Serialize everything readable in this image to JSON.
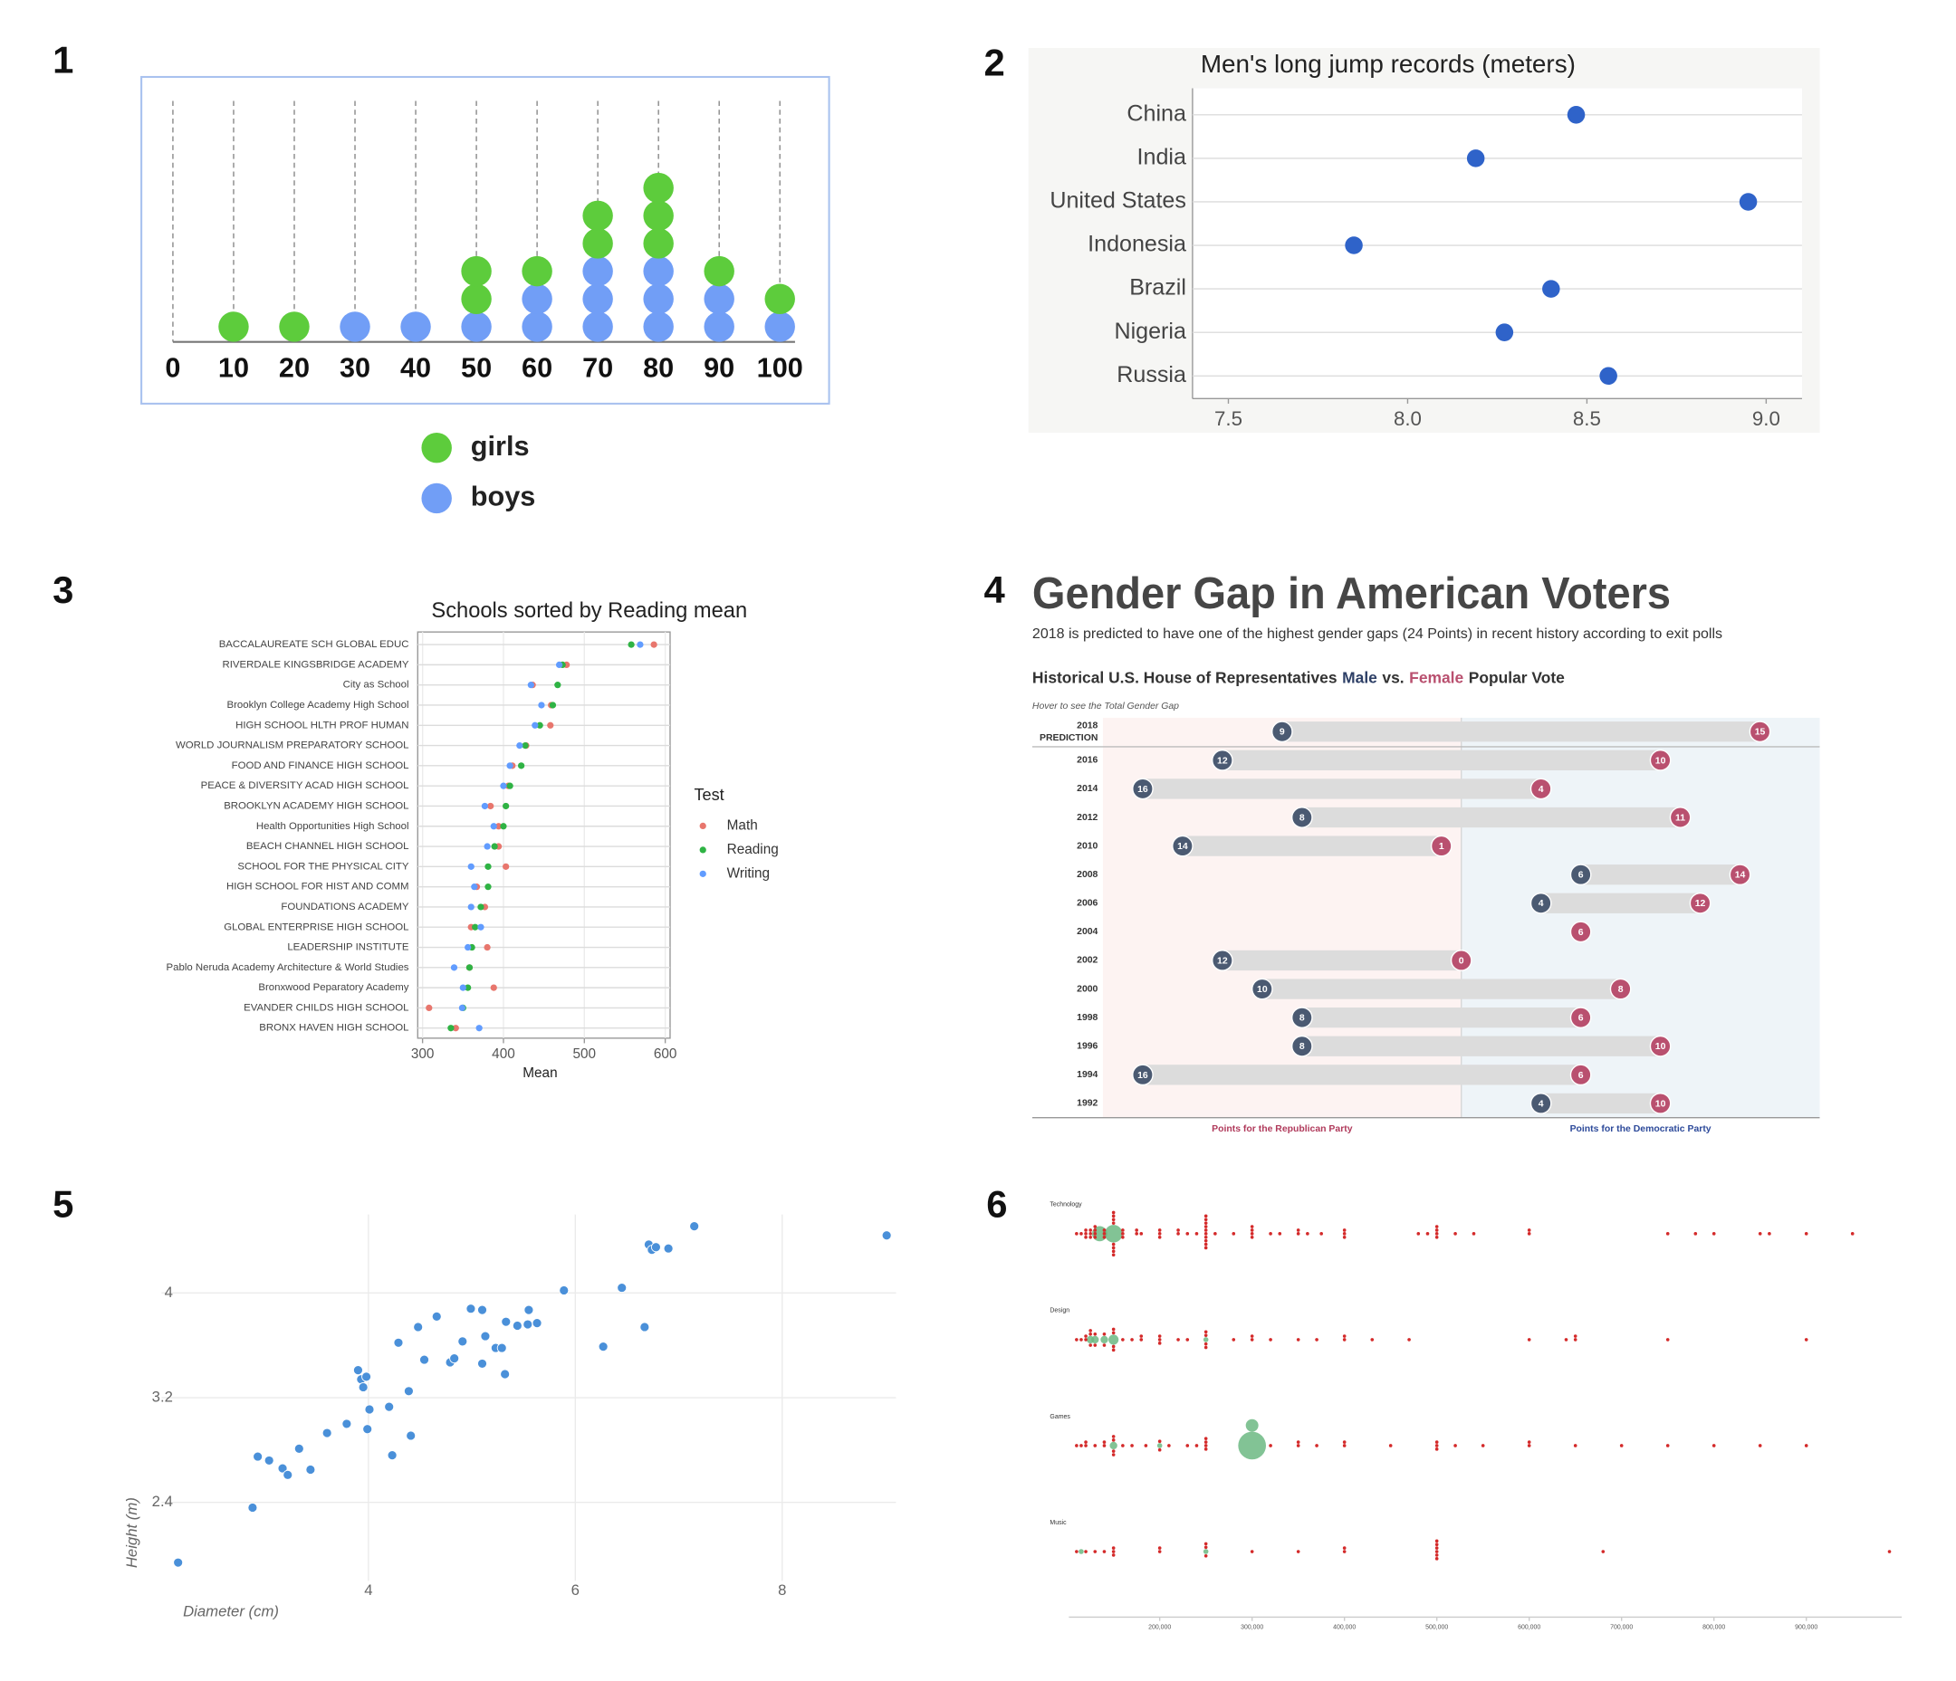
{
  "chart_data": [
    {
      "type": "dotplot",
      "label": "1",
      "x": [
        0,
        10,
        20,
        30,
        40,
        50,
        60,
        70,
        80,
        90,
        100
      ],
      "series": [
        {
          "name": "girls",
          "color": "#5dcc3c",
          "values": [
            0,
            1,
            1,
            0,
            0,
            2,
            1,
            2,
            3,
            1,
            1
          ]
        },
        {
          "name": "boys",
          "color": "#719ef6",
          "values": [
            0,
            0,
            0,
            1,
            1,
            1,
            2,
            3,
            3,
            2,
            1
          ]
        }
      ],
      "xlim": [
        0,
        100
      ],
      "xticks": [
        0,
        10,
        20,
        30,
        40,
        50,
        60,
        70,
        80,
        90,
        100
      ],
      "grid": true
    },
    {
      "type": "dot",
      "label": "2",
      "title": "Men's long jump records (meters)",
      "categories": [
        "China",
        "India",
        "United States",
        "Indonesia",
        "Brazil",
        "Nigeria",
        "Russia"
      ],
      "values": [
        8.47,
        8.19,
        8.95,
        7.85,
        8.4,
        8.27,
        8.56
      ],
      "color": "#2f63c9",
      "xlim": [
        7.4,
        9.1
      ],
      "xticks": [
        7.5,
        {
          "value": 8,
          "label": "8.0"
        },
        8.5,
        {
          "value": 9,
          "label": "9.0"
        }
      ],
      "grid": true
    },
    {
      "type": "dot",
      "label": "3",
      "title": "Schools sorted by Reading mean",
      "xlabel": "Mean",
      "legend_title": "Test",
      "categories": [
        "BACCALAUREATE SCH GLOBAL EDUC",
        "RIVERDALE KINGSBRIDGE ACADEMY",
        "City as School",
        "Brooklyn College Academy High School",
        "HIGH SCHOOL HLTH PROF HUMAN",
        "WORLD JOURNALISM PREPARATORY SCHOOL",
        "FOOD AND FINANCE HIGH SCHOOL",
        "PEACE & DIVERSITY ACAD HIGH SCHOOL",
        "BROOKLYN ACADEMY HIGH SCHOOL",
        "Health Opportunities High School",
        "BEACH CHANNEL HIGH SCHOOL",
        "SCHOOL FOR THE PHYSICAL CITY",
        "HIGH SCHOOL FOR HIST AND COMM",
        "FOUNDATIONS ACADEMY",
        "GLOBAL ENTERPRISE HIGH SCHOOL",
        "LEADERSHIP INSTITUTE",
        "Pablo Neruda Academy Architecture & World Studies",
        "Bronxwood Peparatory Academy",
        "EVANDER CHILDS HIGH SCHOOL",
        "BRONX HAVEN HIGH SCHOOL"
      ],
      "series": [
        {
          "name": "Math",
          "color": "#e8766d",
          "values": [
            586,
            478,
            436,
            459,
            458,
            428,
            411,
            406,
            384,
            394,
            394,
            403,
            367,
            377,
            360,
            380,
            358,
            388,
            308,
            341
          ]
        },
        {
          "name": "Reading",
          "color": "#2fb344",
          "values": [
            558,
            473,
            467,
            461,
            445,
            427,
            422,
            408,
            403,
            400,
            389,
            381,
            381,
            372,
            365,
            361,
            358,
            356,
            350,
            335
          ]
        },
        {
          "name": "Writing",
          "color": "#619cff",
          "values": [
            569,
            469,
            434,
            447,
            439,
            420,
            408,
            400,
            377,
            388,
            380,
            360,
            364,
            360,
            372,
            356,
            339,
            350,
            349,
            370
          ]
        }
      ],
      "xlim": [
        294,
        606
      ],
      "xticks": [
        300,
        400,
        500,
        600
      ],
      "grid": true
    },
    {
      "type": "dumbbell",
      "label": "4",
      "title": "Gender Gap in American Voters",
      "subtitle": "2018 is predicted to have one of the highest gender gaps (24 Points) in recent history according to exit polls",
      "heading": [
        "Historical U.S. House of Representatives",
        "vs.",
        "Popular Vote"
      ],
      "note": "Hover to see the Total Gender Gap",
      "xlabels": [
        "Points for the Republican Party",
        "Points for the Democratic Party"
      ],
      "categories": [
        "2018 PREDICTION",
        "2016",
        "2014",
        "2012",
        "2010",
        "2008",
        "2006",
        "2004",
        "2002",
        "2000",
        "1998",
        "1996",
        "1994",
        "1992"
      ],
      "series": [
        {
          "name": "Male",
          "color": "#4b5a72",
          "values": [
            -9,
            -12,
            -16,
            -8,
            -14,
            6,
            4,
            null,
            -12,
            -10,
            -8,
            -8,
            -16,
            4
          ],
          "value_labels": [
            "9",
            "12",
            "16",
            "8",
            "14",
            "6",
            "4",
            null,
            "12",
            "10",
            "8",
            "8",
            "16",
            "4"
          ]
        },
        {
          "name": "Female",
          "color": "#b9506f",
          "values": [
            15,
            10,
            4,
            11,
            -1,
            14,
            12,
            6,
            0,
            8,
            6,
            10,
            6,
            10
          ],
          "value_labels": [
            "15",
            "10",
            "4",
            "11",
            "1",
            "14",
            "12",
            "6",
            "0",
            "8",
            "6",
            "10",
            "6",
            "10"
          ]
        }
      ],
      "xlim": [
        -18,
        18
      ]
    },
    {
      "type": "scatter",
      "label": "5",
      "xlabel": "Diameter (cm)",
      "ylabel": "Height (m)",
      "color": "#4a90d9",
      "x": [
        2.16,
        2.88,
        2.93,
        3.04,
        3.17,
        3.22,
        3.33,
        3.44,
        3.6,
        3.79,
        3.9,
        3.93,
        3.95,
        3.98,
        3.99,
        4.01,
        4.2,
        4.23,
        4.29,
        4.39,
        4.41,
        4.48,
        4.54,
        4.66,
        4.79,
        4.83,
        4.91,
        4.99,
        5.1,
        5.1,
        5.13,
        5.23,
        5.29,
        5.32,
        5.33,
        5.44,
        5.54,
        5.55,
        5.63,
        5.89,
        6.27,
        6.45,
        6.67,
        6.71,
        6.74,
        6.78,
        6.9,
        7.15,
        9.01
      ],
      "y": [
        1.94,
        2.36,
        2.75,
        2.72,
        2.66,
        2.61,
        2.81,
        2.65,
        2.93,
        3.0,
        3.41,
        3.34,
        3.28,
        3.36,
        2.96,
        3.11,
        3.13,
        2.76,
        3.62,
        3.25,
        2.91,
        3.74,
        3.49,
        3.82,
        3.47,
        3.5,
        3.63,
        3.88,
        3.46,
        3.87,
        3.67,
        3.58,
        3.58,
        3.38,
        3.78,
        3.75,
        3.76,
        3.87,
        3.77,
        4.02,
        3.59,
        4.04,
        3.74,
        4.37,
        4.33,
        4.35,
        4.34,
        4.51,
        4.44
      ],
      "xlim": [
        2,
        9.1
      ],
      "ylim": [
        1.8,
        4.6
      ],
      "xticks": [
        4,
        6,
        8
      ],
      "yticks": [
        2.4,
        3.2,
        4
      ],
      "grid": true
    },
    {
      "type": "beeswarm",
      "label": "6",
      "color": "#d42a2a",
      "highlight_color": "#6cb883",
      "series": [
        {
          "name": "Technology",
          "values": [
            110000,
            115000,
            120000,
            120000,
            120000,
            125000,
            125000,
            125000,
            130000,
            130000,
            130000,
            130000,
            140000,
            140000,
            140000,
            150000,
            150000,
            150000,
            150000,
            150000,
            150000,
            150000,
            150000,
            160000,
            160000,
            160000,
            175000,
            175000,
            180000,
            200000,
            200000,
            200000,
            220000,
            220000,
            230000,
            240000,
            250000,
            250000,
            250000,
            250000,
            250000,
            250000,
            250000,
            250000,
            250000,
            250000,
            260000,
            280000,
            300000,
            300000,
            300000,
            300000,
            320000,
            330000,
            350000,
            350000,
            360000,
            375000,
            400000,
            400000,
            400000,
            480000,
            490000,
            500000,
            500000,
            500000,
            500000,
            520000,
            540000,
            600000,
            600000,
            750000,
            780000,
            800000,
            850000,
            860000,
            900000,
            950000
          ],
          "highlight": [
            135000,
            150000
          ],
          "highlight_sizes": [
            6,
            7
          ]
        },
        {
          "name": "Design",
          "values": [
            110000,
            115000,
            120000,
            120000,
            125000,
            125000,
            125000,
            130000,
            130000,
            140000,
            140000,
            150000,
            150000,
            150000,
            150000,
            160000,
            170000,
            180000,
            180000,
            200000,
            200000,
            200000,
            220000,
            230000,
            250000,
            250000,
            250000,
            250000,
            280000,
            300000,
            300000,
            320000,
            350000,
            370000,
            400000,
            400000,
            430000,
            470000,
            600000,
            640000,
            650000,
            650000,
            750000,
            900000
          ],
          "highlight": [
            125000,
            130000,
            140000,
            150000,
            250000
          ],
          "highlight_sizes": [
            3,
            3,
            3,
            4,
            2
          ]
        },
        {
          "name": "Games",
          "values": [
            110000,
            115000,
            120000,
            120000,
            130000,
            140000,
            140000,
            150000,
            150000,
            150000,
            150000,
            160000,
            170000,
            185000,
            200000,
            200000,
            210000,
            230000,
            240000,
            250000,
            250000,
            250000,
            250000,
            320000,
            350000,
            350000,
            370000,
            400000,
            400000,
            450000,
            500000,
            500000,
            500000,
            520000,
            550000,
            600000,
            600000,
            650000,
            700000,
            750000,
            800000,
            850000,
            900000
          ],
          "highlight": [
            300000,
            300000,
            150000,
            200000
          ],
          "highlight_sizes": [
            11,
            5,
            3,
            2
          ]
        },
        {
          "name": "Music",
          "values": [
            110000,
            120000,
            130000,
            140000,
            150000,
            150000,
            150000,
            200000,
            200000,
            250000,
            250000,
            250000,
            300000,
            350000,
            400000,
            400000,
            500000,
            500000,
            500000,
            500000,
            500000,
            500000,
            680000,
            990000
          ],
          "highlight": [
            115000,
            250000
          ],
          "highlight_sizes": [
            2,
            2
          ]
        }
      ],
      "xlim": [
        100000,
        1000000
      ],
      "xticks": [
        {
          "value": 200000,
          "label": "200,000"
        },
        {
          "value": 300000,
          "label": "300,000"
        },
        {
          "value": 400000,
          "label": "400,000"
        },
        {
          "value": 500000,
          "label": "500,000"
        },
        {
          "value": 600000,
          "label": "600,000"
        },
        {
          "value": 700000,
          "label": "700,000"
        },
        {
          "value": 800000,
          "label": "800,000"
        },
        {
          "value": 900000,
          "label": "900,000"
        }
      ]
    }
  ]
}
